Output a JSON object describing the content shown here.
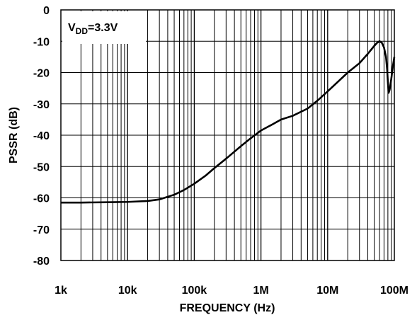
{
  "chart_data": {
    "type": "line",
    "title": "",
    "xlabel": "FREQUENCY (Hz)",
    "ylabel": "PSSR (dB)",
    "x_scale": "log",
    "xlim": [
      1000,
      100000000
    ],
    "ylim": [
      -80,
      0
    ],
    "grid": true,
    "x_tick_values": [
      1000,
      10000,
      100000,
      1000000,
      10000000,
      100000000
    ],
    "x_tick_labels": [
      "1k",
      "10k",
      "100k",
      "1M",
      "10M",
      "100M"
    ],
    "y_tick_values": [
      0,
      -10,
      -20,
      -30,
      -40,
      -50,
      -60,
      -70,
      -80
    ],
    "y_tick_labels": [
      "0",
      "-10",
      "-20",
      "-30",
      "-40",
      "-50",
      "-60",
      "-70",
      "-80"
    ],
    "annotation": {
      "v": "V",
      "sub": "DD",
      "rest": "=3.3V"
    },
    "series": [
      {
        "color": "#000000",
        "x": [
          1000,
          2000,
          5000,
          10000,
          20000,
          30000,
          50000,
          70000,
          100000,
          150000,
          200000,
          300000,
          500000,
          700000,
          1000000,
          1500000,
          2000000,
          3000000,
          5000000,
          7000000,
          10000000,
          15000000,
          20000000,
          30000000,
          40000000,
          50000000,
          55000000,
          60000000,
          65000000,
          70000000,
          75000000,
          78000000,
          80000000,
          82000000,
          85000000,
          90000000,
          95000000,
          100000000
        ],
        "y": [
          -61.5,
          -61.5,
          -61.4,
          -61.3,
          -61.0,
          -60.5,
          -59.0,
          -57.5,
          -55.5,
          -52.8,
          -50.5,
          -47.5,
          -43.5,
          -41.0,
          -38.5,
          -36.5,
          -35.0,
          -33.8,
          -31.5,
          -29.0,
          -26.0,
          -22.5,
          -20.0,
          -17.0,
          -14.0,
          -11.5,
          -10.5,
          -10.0,
          -10.5,
          -12.0,
          -15.0,
          -19.0,
          -23.0,
          -26.5,
          -25.5,
          -22.0,
          -18.0,
          -15.0
        ]
      }
    ]
  }
}
